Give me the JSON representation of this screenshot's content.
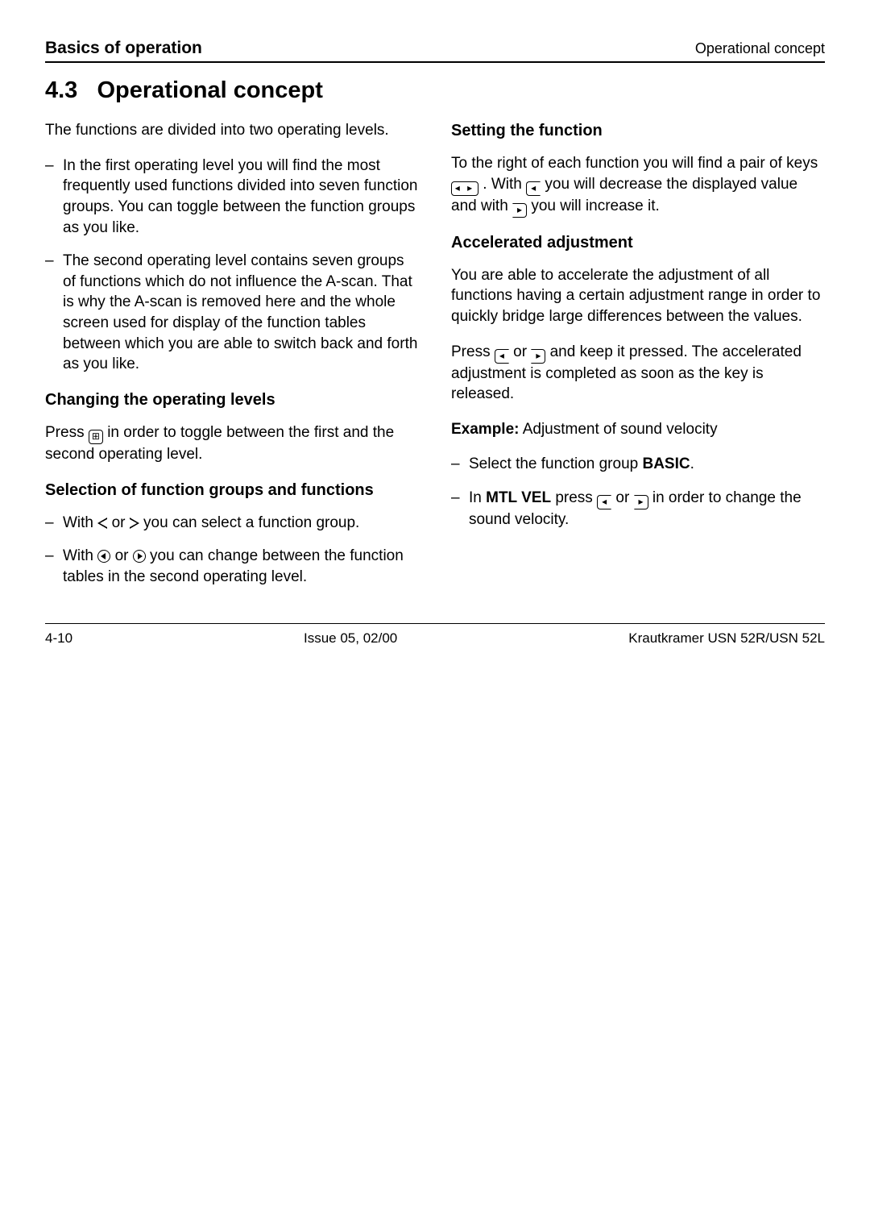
{
  "header": {
    "left": "Basics of operation",
    "right": "Operational concept"
  },
  "section": {
    "number": "4.3",
    "title": "Operational concept"
  },
  "left": {
    "intro": "The functions are divided into two operating levels.",
    "bullets": [
      "In the first operating level you will find the most frequently used functions divided into seven function groups. You can toggle between the function groups as you like.",
      "The second operating level contains seven groups of functions which do not influence the A-scan. That is why the A-scan is removed here and the whole screen used for display of the function tables between which you are able to switch back and forth as you like."
    ],
    "sub1": {
      "title": "Changing the operating levels",
      "para_before": "Press ",
      "para_after": " in order to toggle between the first and the second operating level."
    },
    "sub2": {
      "title": "Selection of function groups and functions",
      "b1_before": "With ",
      "b1_mid": " or ",
      "b1_after": " you can select a function group.",
      "b2_before": "With ",
      "b2_mid": " or ",
      "b2_after": "  you can change between the function tables in the second operating level."
    }
  },
  "right": {
    "sub1": {
      "title": "Setting the function",
      "p1a": "To the right of each function you will find a pair of keys ",
      "p1b": ". With ",
      "p1c": " you will decrease the displayed value and with ",
      "p1d": " you will increase it."
    },
    "sub2": {
      "title": "Accelerated adjustment",
      "p1": "You are able to accelerate the adjustment of all functions having a certain adjustment range in order to quickly bridge large differences between the values.",
      "p2a": "Press ",
      "p2b": " or ",
      "p2c": " and keep it pressed. The accelerated adjustment is completed as soon as the key is released.",
      "example_label": "Example:",
      "example_text": " Adjustment of sound velocity",
      "b1_before": "Select the function group ",
      "b1_bold": "BASIC",
      "b1_after": ".",
      "b2_a": "In ",
      "b2_bold": "MTL VEL",
      "b2_b": " press ",
      "b2_c": " or ",
      "b2_d": " in order to change the sound velocity."
    }
  },
  "footer": {
    "left": "4-10",
    "center": "Issue 05, 02/00",
    "right": "Krautkramer USN 52R/USN 52L"
  }
}
